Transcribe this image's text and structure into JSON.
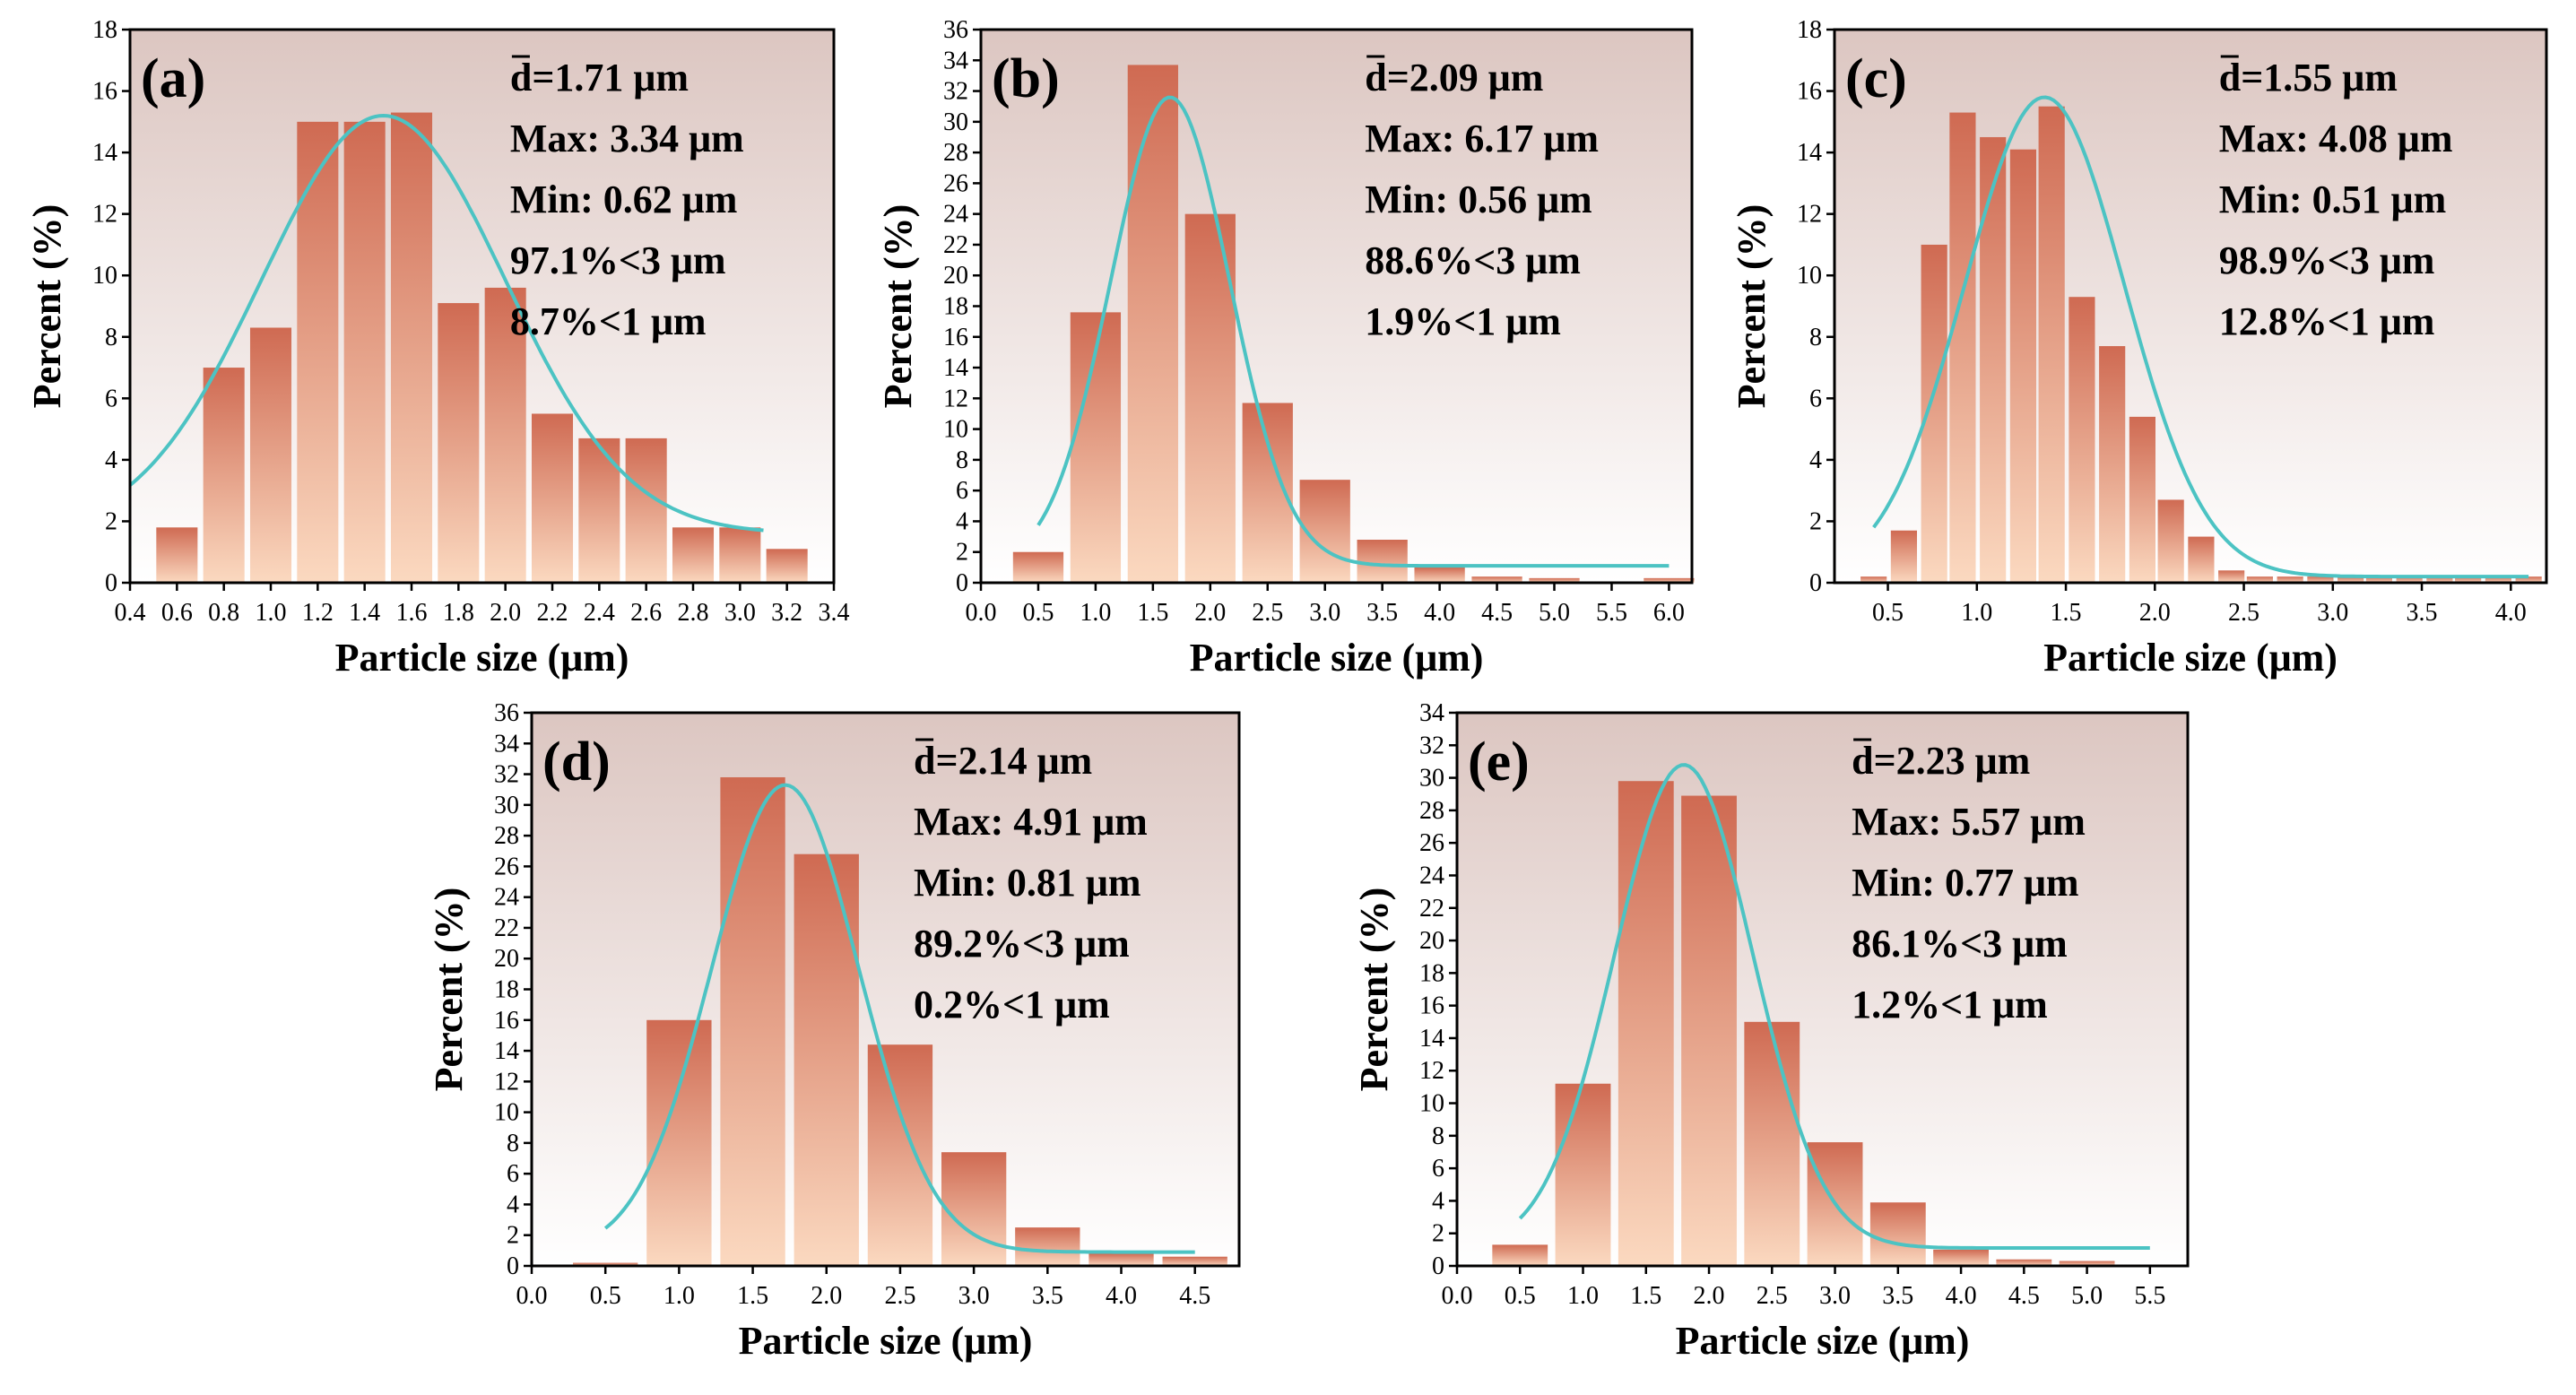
{
  "colors": {
    "bar_top": "#cf6a52",
    "bar_bottom": "#fbd9c0",
    "bg_top": "#dcc6c1",
    "bg_bottom": "#ffffff",
    "curve": "#4cc3c3",
    "axis": "#000000"
  },
  "chart_data": [
    {
      "type": "bar",
      "panel_label": "(a)",
      "title": "",
      "xlabel": "Particle size (μm)",
      "ylabel": "Percent (%)",
      "xlim": [
        0.4,
        3.4
      ],
      "ylim": [
        0,
        18
      ],
      "x_ticks": [
        "0.4",
        "0.6",
        "0.8",
        "1.0",
        "1.2",
        "1.4",
        "1.6",
        "1.8",
        "2.0",
        "2.2",
        "2.4",
        "2.6",
        "2.8",
        "3.0",
        "3.2",
        "3.4"
      ],
      "x_tick_values": [
        0.4,
        0.6,
        0.8,
        1.0,
        1.2,
        1.4,
        1.6,
        1.8,
        2.0,
        2.2,
        2.4,
        2.6,
        2.8,
        3.0,
        3.2,
        3.4
      ],
      "y_ticks": [
        "0",
        "2",
        "4",
        "6",
        "8",
        "10",
        "12",
        "14",
        "16",
        "18"
      ],
      "y_tick_values": [
        0,
        2,
        4,
        6,
        8,
        10,
        12,
        14,
        16,
        18
      ],
      "bin_width": 0.2,
      "bar_centers": [
        0.6,
        0.8,
        1.0,
        1.2,
        1.4,
        1.6,
        1.8,
        2.0,
        2.2,
        2.4,
        2.6,
        2.8,
        3.0,
        3.2
      ],
      "values": [
        1.8,
        7.0,
        8.3,
        15.0,
        15.0,
        15.3,
        9.1,
        9.6,
        5.5,
        4.7,
        4.7,
        1.8,
        1.8,
        1.1
      ],
      "fit": {
        "mean": 1.48,
        "sigma": 0.52,
        "amplitude": 15.2,
        "baseline": 1.6,
        "x_start": 0.4,
        "x_end": 3.1
      },
      "stats": {
        "mean": "d=1.71 μm",
        "max": "Max: 3.34 μm",
        "min": "Min: 0.62 μm",
        "pct_lt3": "97.1%<3 μm",
        "pct_lt1": "8.7%<1 μm"
      }
    },
    {
      "type": "bar",
      "panel_label": "(b)",
      "title": "",
      "xlabel": "Particle size (μm)",
      "ylabel": "Percent (%)",
      "xlim": [
        0.0,
        6.2
      ],
      "ylim": [
        0,
        36
      ],
      "x_ticks": [
        "0.0",
        "0.5",
        "1.0",
        "1.5",
        "2.0",
        "2.5",
        "3.0",
        "3.5",
        "4.0",
        "4.5",
        "5.0",
        "5.5",
        "6.0"
      ],
      "x_tick_values": [
        0.0,
        0.5,
        1.0,
        1.5,
        2.0,
        2.5,
        3.0,
        3.5,
        4.0,
        4.5,
        5.0,
        5.5,
        6.0
      ],
      "y_ticks": [
        "0",
        "2",
        "4",
        "6",
        "8",
        "10",
        "12",
        "14",
        "16",
        "18",
        "20",
        "22",
        "24",
        "26",
        "28",
        "30",
        "32",
        "34",
        "36"
      ],
      "y_tick_values": [
        0,
        2,
        4,
        6,
        8,
        10,
        12,
        14,
        16,
        18,
        20,
        22,
        24,
        26,
        28,
        30,
        32,
        34,
        36
      ],
      "bin_width": 0.5,
      "bar_centers": [
        0.5,
        1.0,
        1.5,
        2.0,
        2.5,
        3.0,
        3.5,
        4.0,
        4.5,
        5.0,
        6.0
      ],
      "values": [
        2.0,
        17.6,
        33.7,
        24.0,
        11.7,
        6.7,
        2.8,
        1.0,
        0.4,
        0.3,
        0.3
      ],
      "fit": {
        "mean": 1.65,
        "sigma": 0.52,
        "amplitude": 31.6,
        "baseline": 1.1,
        "x_start": 0.5,
        "x_end": 6.0
      },
      "stats": {
        "mean": "d=2.09 μm",
        "max": "Max: 6.17 μm",
        "min": "Min: 0.56 μm",
        "pct_lt3": "88.6%<3 μm",
        "pct_lt1": "1.9%<1 μm"
      }
    },
    {
      "type": "bar",
      "panel_label": "(c)",
      "title": "",
      "xlabel": "Particle size (μm)",
      "ylabel": "Percent (%)",
      "xlim": [
        0.2,
        4.2
      ],
      "ylim": [
        0,
        18
      ],
      "x_ticks": [
        "0.5",
        "1.0",
        "1.5",
        "2.0",
        "2.5",
        "3.0",
        "3.5",
        "4.0"
      ],
      "x_tick_values": [
        0.5,
        1.0,
        1.5,
        2.0,
        2.5,
        3.0,
        3.5,
        4.0
      ],
      "y_ticks": [
        "0",
        "2",
        "4",
        "6",
        "8",
        "10",
        "12",
        "14",
        "16",
        "18"
      ],
      "y_tick_values": [
        0,
        2,
        4,
        6,
        8,
        10,
        12,
        14,
        16,
        18
      ],
      "bin_width": 0.167,
      "bar_centers": [
        0.42,
        0.59,
        0.76,
        0.92,
        1.09,
        1.26,
        1.42,
        1.59,
        1.76,
        1.93,
        2.09,
        2.26,
        2.43,
        2.59,
        2.76,
        2.93,
        3.1,
        3.26,
        3.43,
        3.6,
        3.76,
        3.93,
        4.1
      ],
      "values": [
        0.2,
        1.7,
        11.0,
        15.3,
        14.5,
        14.1,
        15.5,
        9.3,
        7.7,
        5.4,
        2.7,
        1.5,
        0.4,
        0.2,
        0.2,
        0.2,
        0.2,
        0.2,
        0.2,
        0.2,
        0.2,
        0.2,
        0.2
      ],
      "fit": {
        "mean": 1.38,
        "sigma": 0.45,
        "amplitude": 15.8,
        "baseline": 0.2,
        "x_start": 0.42,
        "x_end": 4.1
      },
      "stats": {
        "mean": "d=1.55 μm",
        "max": "Max: 4.08 μm",
        "min": "Min: 0.51 μm",
        "pct_lt3": "98.9%<3 μm",
        "pct_lt1": "12.8%<1 μm"
      }
    },
    {
      "type": "bar",
      "panel_label": "(d)",
      "title": "",
      "xlabel": "Particle size (μm)",
      "ylabel": "Percent (%)",
      "xlim": [
        0.0,
        4.8
      ],
      "ylim": [
        0,
        36
      ],
      "x_ticks": [
        "0.0",
        "0.5",
        "1.0",
        "1.5",
        "2.0",
        "2.5",
        "3.0",
        "3.5",
        "4.0",
        "4.5"
      ],
      "x_tick_values": [
        0.0,
        0.5,
        1.0,
        1.5,
        2.0,
        2.5,
        3.0,
        3.5,
        4.0,
        4.5
      ],
      "y_ticks": [
        "0",
        "2",
        "4",
        "6",
        "8",
        "10",
        "12",
        "14",
        "16",
        "18",
        "20",
        "22",
        "24",
        "26",
        "28",
        "30",
        "32",
        "34",
        "36"
      ],
      "y_tick_values": [
        0,
        2,
        4,
        6,
        8,
        10,
        12,
        14,
        16,
        18,
        20,
        22,
        24,
        26,
        28,
        30,
        32,
        34,
        36
      ],
      "bin_width": 0.5,
      "bar_centers": [
        0.5,
        1.0,
        1.5,
        2.0,
        2.5,
        3.0,
        3.5,
        4.0,
        4.5
      ],
      "values": [
        0.2,
        16.0,
        31.8,
        26.8,
        14.4,
        7.4,
        2.5,
        0.8,
        0.6
      ],
      "fit": {
        "mean": 1.72,
        "sigma": 0.5,
        "amplitude": 31.3,
        "baseline": 0.9,
        "x_start": 0.5,
        "x_end": 4.5
      },
      "stats": {
        "mean": "d=2.14 μm",
        "max": "Max: 4.91 μm",
        "min": "Min: 0.81 μm",
        "pct_lt3": "89.2%<3 μm",
        "pct_lt1": "0.2%<1 μm"
      }
    },
    {
      "type": "bar",
      "panel_label": "(e)",
      "title": "",
      "xlabel": "Particle size (μm)",
      "ylabel": "Percent (%)",
      "xlim": [
        0.0,
        5.8
      ],
      "ylim": [
        0,
        34
      ],
      "x_ticks": [
        "0.0",
        "0.5",
        "1.0",
        "1.5",
        "2.0",
        "2.5",
        "3.0",
        "3.5",
        "4.0",
        "4.5",
        "5.0",
        "5.5"
      ],
      "x_tick_values": [
        0.0,
        0.5,
        1.0,
        1.5,
        2.0,
        2.5,
        3.0,
        3.5,
        4.0,
        4.5,
        5.0,
        5.5
      ],
      "y_ticks": [
        "0",
        "2",
        "4",
        "6",
        "8",
        "10",
        "12",
        "14",
        "16",
        "18",
        "20",
        "22",
        "24",
        "26",
        "28",
        "30",
        "32",
        "34"
      ],
      "y_tick_values": [
        0,
        2,
        4,
        6,
        8,
        10,
        12,
        14,
        16,
        18,
        20,
        22,
        24,
        26,
        28,
        30,
        32,
        34
      ],
      "bin_width": 0.5,
      "bar_centers": [
        0.5,
        1.0,
        1.5,
        2.0,
        2.5,
        3.0,
        3.5,
        4.0,
        4.5,
        5.0
      ],
      "values": [
        1.3,
        11.2,
        29.8,
        28.9,
        15.0,
        7.6,
        3.9,
        1.0,
        0.4,
        0.3
      ],
      "fit": {
        "mean": 1.8,
        "sigma": 0.55,
        "amplitude": 30.8,
        "baseline": 1.1,
        "x_start": 0.5,
        "x_end": 5.5
      },
      "stats": {
        "mean": "d=2.23 μm",
        "max": "Max: 5.57 μm",
        "min": "Min: 0.77 μm",
        "pct_lt3": "86.1%<3 μm",
        "pct_lt1": "1.2%<1 μm"
      }
    }
  ]
}
